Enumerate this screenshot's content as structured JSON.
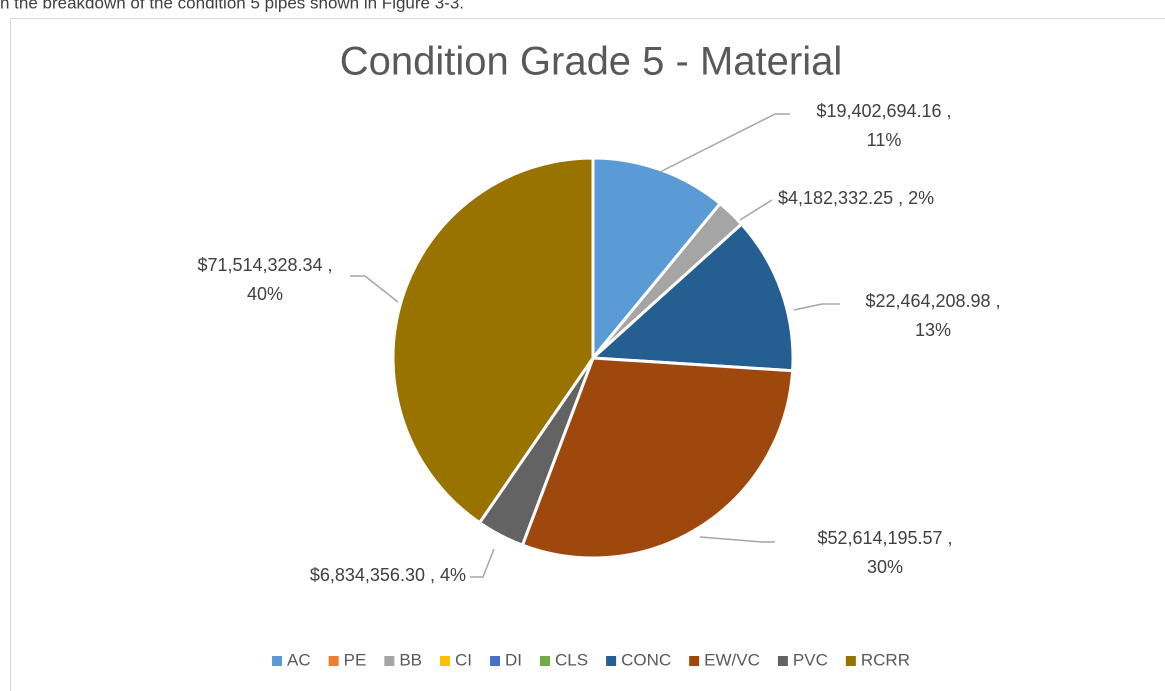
{
  "page_text": "n the breakdown of the condition 5 pipes shown in Figure 3-3.",
  "chart_data": {
    "type": "pie",
    "title": "Condition Grade 5 - Material",
    "categories": [
      "AC",
      "PE",
      "BB",
      "CI",
      "DI",
      "CLS",
      "CONC",
      "EW/VC",
      "PVC",
      "RCRR"
    ],
    "values": [
      19402694.16,
      0,
      4182332.25,
      0,
      0,
      0,
      22464208.98,
      52614195.57,
      6834356.3,
      71514328.34
    ],
    "value_labels": [
      [
        "$19,402,694.16 ,",
        "11%"
      ],
      null,
      [
        "$4,182,332.25 , 2%"
      ],
      null,
      null,
      null,
      [
        "$22,464,208.98 ,",
        "13%"
      ],
      [
        "$52,614,195.57 ,",
        "30%"
      ],
      [
        "$6,834,356.30 , 4%"
      ],
      [
        "$71,514,328.34 ,",
        "40%"
      ]
    ],
    "colors": [
      "#5b9bd5",
      "#ed7d31",
      "#a5a5a5",
      "#ffc000",
      "#4472c4",
      "#70ad47",
      "#255e91",
      "#9e480e",
      "#636363",
      "#997300"
    ],
    "legend": "bottom"
  }
}
